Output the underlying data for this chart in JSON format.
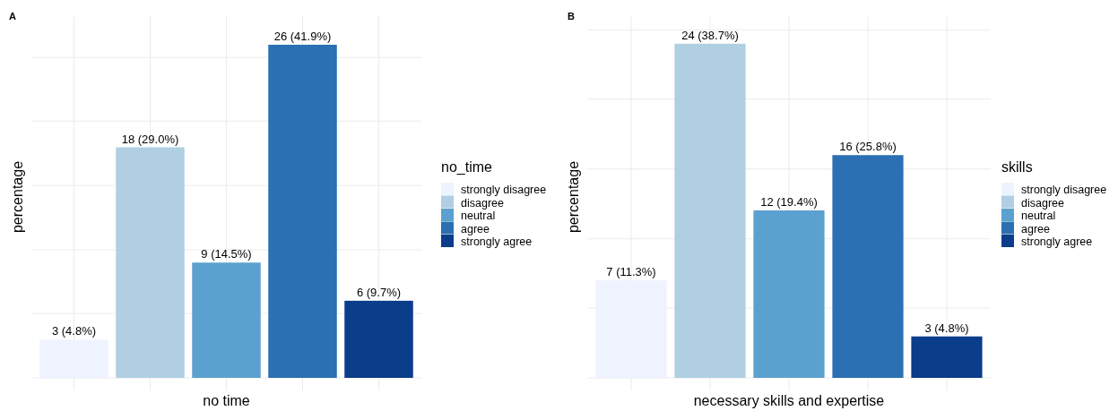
{
  "chart_data": [
    {
      "type": "bar",
      "title": "A",
      "xlabel": "no time",
      "ylabel": "percentage",
      "legend_title": "no_time",
      "categories": [
        null,
        null,
        null,
        null,
        null
      ],
      "series": [
        {
          "name": "strongly disagree",
          "color": "#eff3ff",
          "values": [
            4.8,
            null,
            null,
            null,
            null
          ],
          "value_labels": [
            "3 (4.8%)",
            null,
            null,
            null,
            null
          ]
        },
        {
          "name": "disagree",
          "color": "#b0cfe2",
          "values": [
            null,
            29.0,
            null,
            null,
            null
          ],
          "value_labels": [
            null,
            "18 (29.0%)",
            null,
            null,
            null
          ]
        },
        {
          "name": "neutral",
          "color": "#5ba1cf",
          "values": [
            null,
            null,
            14.5,
            null,
            null
          ],
          "value_labels": [
            null,
            null,
            "9 (14.5%)",
            null,
            null
          ]
        },
        {
          "name": "agree",
          "color": "#2a70b2",
          "values": [
            null,
            null,
            null,
            41.9,
            null
          ],
          "value_labels": [
            null,
            null,
            null,
            "26 (41.9%)",
            null
          ]
        },
        {
          "name": "strongly agree",
          "color": "#0a3d8a",
          "values": [
            null,
            null,
            null,
            null,
            9.7
          ],
          "value_labels": [
            null,
            null,
            null,
            null,
            "6 (9.7%)"
          ]
        }
      ],
      "ylim": [
        0,
        45.5
      ],
      "yticks": [
        {
          "value": 0,
          "label": null
        },
        {
          "value": 8.1,
          "label": null
        },
        {
          "value": 16.1,
          "label": null
        },
        {
          "value": 24.2,
          "label": null
        },
        {
          "value": 32.3,
          "label": null
        },
        {
          "value": 40.3,
          "label": null
        }
      ],
      "grid": true,
      "legend": "right",
      "stacked": true
    },
    {
      "type": "bar",
      "title": "B",
      "xlabel": "necessary skills and expertise",
      "ylabel": "percentage",
      "legend_title": "skills",
      "categories": [
        null,
        null,
        null,
        null,
        null
      ],
      "series": [
        {
          "name": "strongly disagree",
          "color": "#eff3ff",
          "values": [
            11.3,
            null,
            null,
            null,
            null
          ],
          "value_labels": [
            "7 (11.3%)",
            null,
            null,
            null,
            null
          ]
        },
        {
          "name": "disagree",
          "color": "#b0cfe2",
          "values": [
            null,
            38.7,
            null,
            null,
            null
          ],
          "value_labels": [
            null,
            "24 (38.7%)",
            null,
            null,
            null
          ]
        },
        {
          "name": "neutral",
          "color": "#5ba1cf",
          "values": [
            null,
            null,
            19.4,
            null,
            null
          ],
          "value_labels": [
            null,
            null,
            "12 (19.4%)",
            null,
            null
          ]
        },
        {
          "name": "agree",
          "color": "#2a70b2",
          "values": [
            null,
            null,
            null,
            25.8,
            null
          ],
          "value_labels": [
            null,
            null,
            null,
            "16 (25.8%)",
            null
          ]
        },
        {
          "name": "strongly agree",
          "color": "#0a3d8a",
          "values": [
            null,
            null,
            null,
            null,
            4.8
          ],
          "value_labels": [
            null,
            null,
            null,
            null,
            "3 (4.8%)"
          ]
        }
      ],
      "ylim": [
        0,
        41.9
      ],
      "yticks": [
        {
          "value": 0,
          "label": null
        },
        {
          "value": 8.1,
          "label": null
        },
        {
          "value": 16.1,
          "label": null
        },
        {
          "value": 24.2,
          "label": null
        },
        {
          "value": 32.3,
          "label": null
        },
        {
          "value": 40.3,
          "label": null
        }
      ],
      "grid": true,
      "legend": "right",
      "stacked": true
    }
  ]
}
